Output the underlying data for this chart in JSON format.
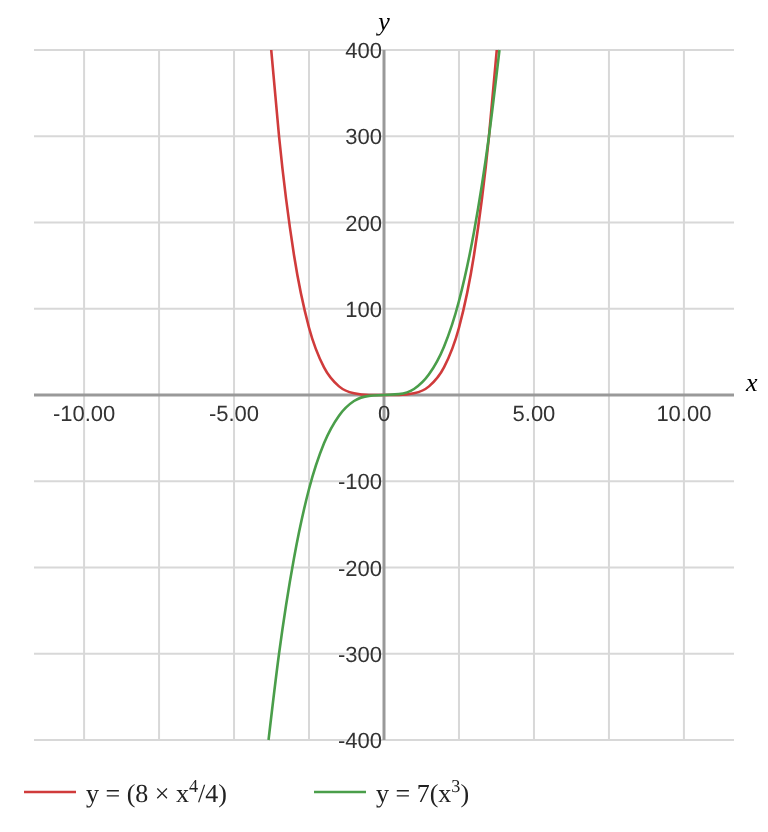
{
  "chart_data": {
    "type": "line",
    "xlabel": "x",
    "ylabel": "y",
    "xlim": [
      -11.67,
      11.67
    ],
    "ylim": [
      -400,
      400
    ],
    "xticks": [
      {
        "value": -10,
        "label": "-10.00"
      },
      {
        "value": -7.5,
        "label": null
      },
      {
        "value": -5,
        "label": "-5.00"
      },
      {
        "value": -2.5,
        "label": null
      },
      {
        "value": 0,
        "label": "0"
      },
      {
        "value": 2.5,
        "label": null
      },
      {
        "value": 5,
        "label": "5.00"
      },
      {
        "value": 7.5,
        "label": null
      },
      {
        "value": 10,
        "label": "10.00"
      }
    ],
    "yticks": [
      -400,
      -300,
      -200,
      -100,
      {
        "value": 0,
        "label": null
      },
      100,
      200,
      300,
      400
    ],
    "grid": true,
    "legend": "bottom",
    "marker": "none",
    "line_style": "solid",
    "series": [
      {
        "name": "y = (8 × x$^{4}$/4)",
        "color": "#d03b3b",
        "x": [
          -3.76,
          -3.5,
          -3,
          -2.5,
          -2,
          -1.5,
          -1,
          -0.5,
          0,
          0.5,
          1,
          1.5,
          2,
          2.5,
          3,
          3.5,
          3.76
        ],
        "values": [
          400,
          300,
          162,
          78,
          32,
          10,
          2,
          0,
          0,
          0,
          2,
          10,
          32,
          78,
          162,
          300,
          400
        ]
      },
      {
        "name": "y = 7(x$^{3}$)",
        "color": "#4a9e4a",
        "x": [
          -3.85,
          -3.5,
          -3,
          -2.5,
          -2,
          -1.5,
          -1,
          -0.5,
          0,
          0.5,
          1,
          1.5,
          2,
          2.5,
          3,
          3.5,
          3.85
        ],
        "values": [
          -400,
          -300,
          -189,
          -109,
          -56,
          -24,
          -7,
          -1,
          0,
          1,
          7,
          24,
          56,
          109,
          189,
          300,
          400
        ]
      }
    ]
  }
}
